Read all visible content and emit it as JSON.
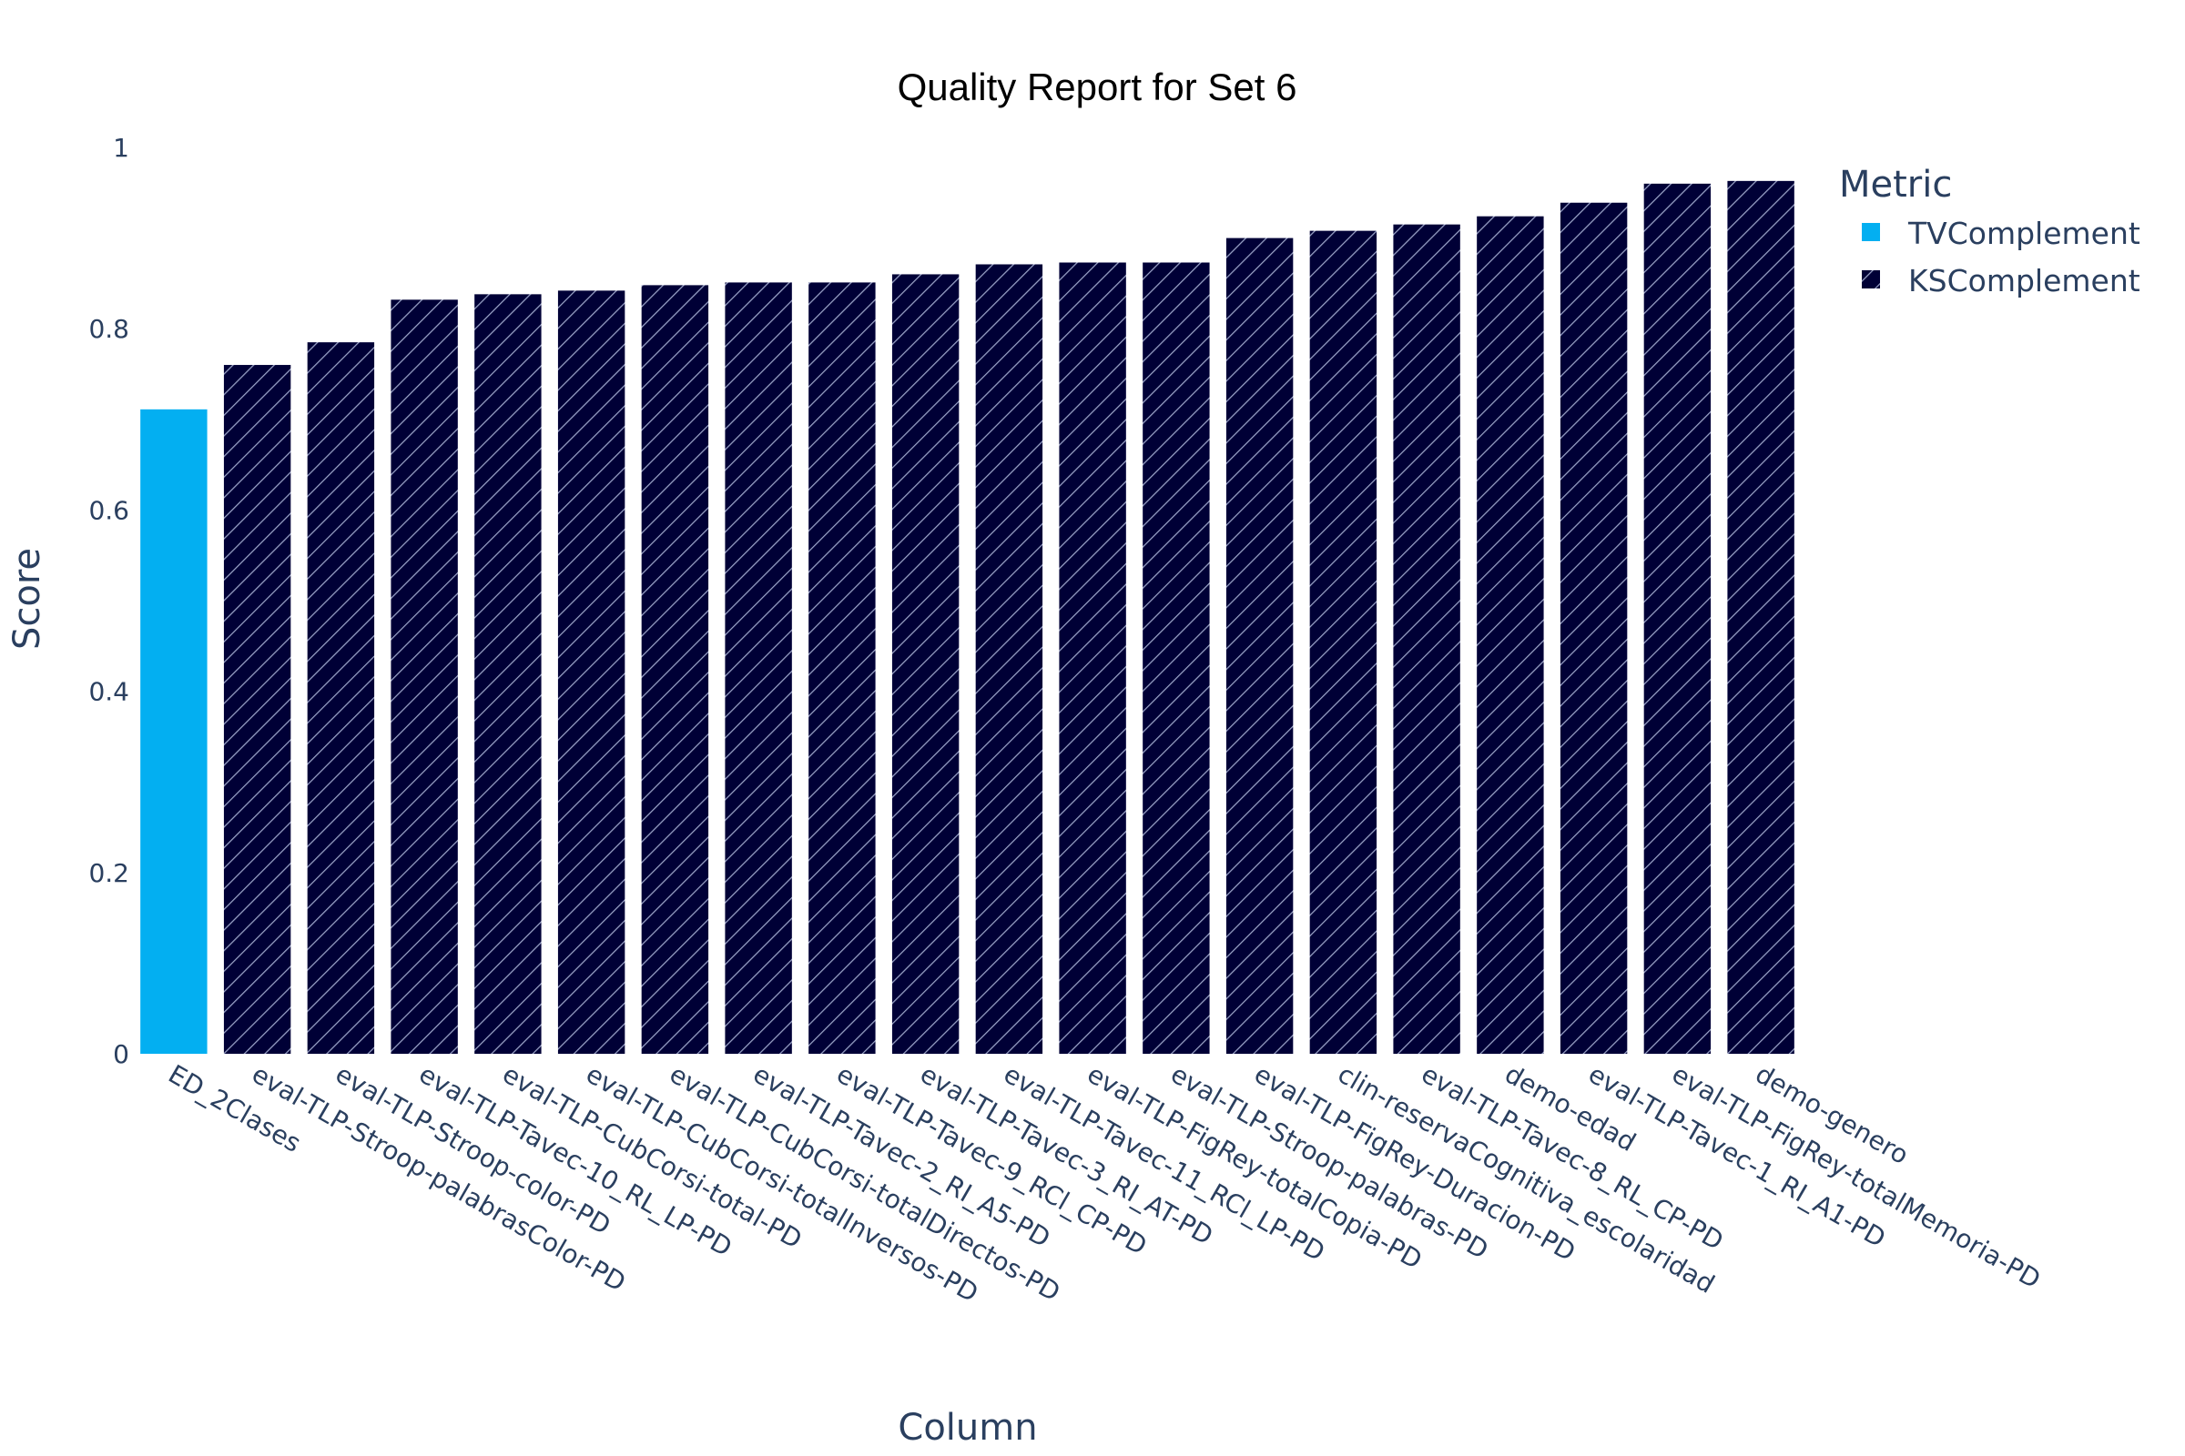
{
  "chart_data": {
    "type": "bar",
    "title": "Quality Report for Set 6",
    "xlabel": "Column",
    "ylabel": "Score",
    "ylim": [
      0,
      1
    ],
    "yticks": [
      "0",
      "0.2",
      "0.4",
      "0.6",
      "0.8",
      "1"
    ],
    "grid": false,
    "legend": {
      "title": "Metric",
      "placement": "top-right"
    },
    "categories": [
      "ED_2Clases",
      "eval-TLP-Stroop-palabrasColor-PD",
      "eval-TLP-Stroop-color-PD",
      "eval-TLP-Tavec-10_RL_LP-PD",
      "eval-TLP-CubCorsi-total-PD",
      "eval-TLP-CubCorsi-totalInversos-PD",
      "eval-TLP-CubCorsi-totalDirectos-PD",
      "eval-TLP-Tavec-2_RI_A5-PD",
      "eval-TLP-Tavec-9_RCl_CP-PD",
      "eval-TLP-Tavec-3_RI_AT-PD",
      "eval-TLP-Tavec-11_RCl_LP-PD",
      "eval-TLP-FigRey-totalCopia-PD",
      "eval-TLP-Stroop-palabras-PD",
      "eval-TLP-FigRey-Duracion-PD",
      "clin-reservaCognitiva_escolaridad",
      "eval-TLP-Tavec-8_RL_CP-PD",
      "demo-edad",
      "eval-TLP-Tavec-1_RI_A1-PD",
      "eval-TLP-FigRey-totalMemoria-PD",
      "demo-genero"
    ],
    "series": [
      {
        "name": "TVComplement",
        "color": "#03AFF1",
        "pattern": "solid",
        "values": [
          0.711,
          null,
          null,
          null,
          null,
          null,
          null,
          null,
          null,
          null,
          null,
          null,
          null,
          null,
          null,
          null,
          null,
          null,
          null,
          null
        ]
      },
      {
        "name": "KSComplement",
        "color": "#000036",
        "pattern": "diagonal-hatch",
        "values": [
          null,
          0.76,
          0.785,
          0.832,
          0.838,
          0.842,
          0.848,
          0.851,
          0.851,
          0.86,
          0.871,
          0.873,
          0.873,
          0.9,
          0.908,
          0.915,
          0.924,
          0.939,
          0.96,
          0.963
        ]
      }
    ]
  }
}
